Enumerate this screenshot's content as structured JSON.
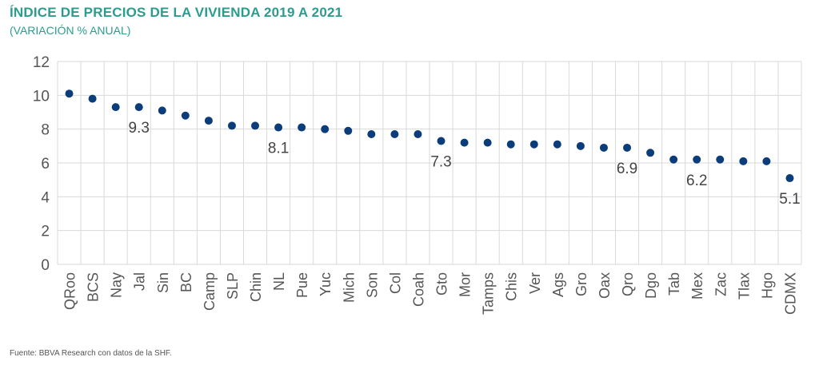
{
  "header": {
    "title": "ÍNDICE DE PRECIOS DE LA VIVIENDA 2019 A 2021",
    "subtitle": "(VARIACIÓN % ANUAL)"
  },
  "footer": {
    "source": "Fuente: BBVA Research con datos de la SHF."
  },
  "chart_data": {
    "type": "scatter",
    "categories": [
      "QRoo",
      "BCS",
      "Nay",
      "Jal",
      "Sin",
      "BC",
      "Camp",
      "SLP",
      "Chin",
      "NL",
      "Pue",
      "Yuc",
      "Mich",
      "Son",
      "Col",
      "Coah",
      "Gto",
      "Mor",
      "Tamps",
      "Chis",
      "Ver",
      "Ags",
      "Gro",
      "Oax",
      "Qro",
      "Dgo",
      "Tab",
      "Mex",
      "Zac",
      "Tlax",
      "Hgo",
      "CDMX"
    ],
    "values": [
      10.1,
      9.8,
      9.3,
      9.3,
      9.1,
      8.8,
      8.5,
      8.2,
      8.2,
      8.1,
      8.1,
      8.0,
      7.9,
      7.7,
      7.7,
      7.7,
      7.3,
      7.2,
      7.2,
      7.1,
      7.1,
      7.1,
      7.0,
      6.9,
      6.9,
      6.6,
      6.2,
      6.2,
      6.2,
      6.1,
      6.1,
      5.1
    ],
    "data_labels": [
      {
        "category": "Jal",
        "text": "9.3"
      },
      {
        "category": "NL",
        "text": "8.1"
      },
      {
        "category": "Gto",
        "text": "7.3"
      },
      {
        "category": "Qro",
        "text": "6.9"
      },
      {
        "category": "Mex",
        "text": "6.2"
      },
      {
        "category": "CDMX",
        "text": "5.1"
      }
    ],
    "ylim": [
      0,
      12
    ],
    "yticks": [
      "0",
      "2",
      "4",
      "6",
      "8",
      "10",
      "12"
    ],
    "grid": true,
    "marker_color": "#0a3d7a",
    "grid_color": "#d9d9d9"
  }
}
